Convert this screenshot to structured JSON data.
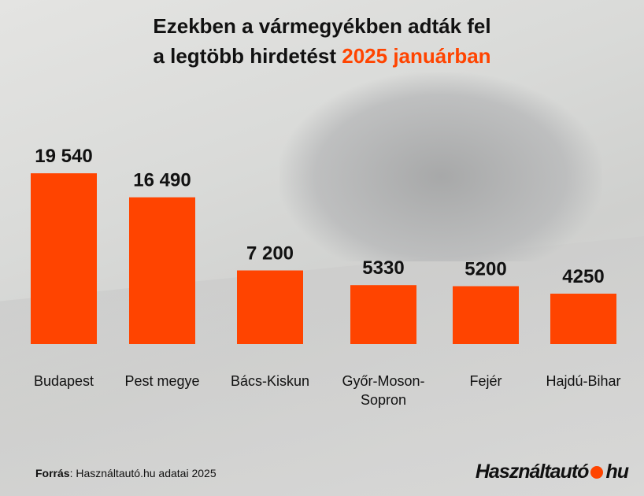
{
  "title": {
    "line1": "Ezekben a vármegyékben adták fel",
    "line2_prefix": "a legtöbb hirdetést ",
    "line2_accent": "2025 januárban"
  },
  "chart_data": {
    "type": "bar",
    "categories": [
      [
        "Budapest"
      ],
      [
        "Pest megye"
      ],
      [
        "Bács-Kiskun"
      ],
      [
        "Győr-Moson-",
        "Sopron"
      ],
      [
        "Fejér"
      ],
      [
        "Hajdú-Bihar"
      ]
    ],
    "values": [
      19540,
      16490,
      7200,
      5330,
      5200,
      4250
    ],
    "value_labels": [
      "19 540",
      "16 490",
      "7 200",
      "5330",
      "5200",
      "4250"
    ],
    "bar_color": "#ff4400",
    "grid": false
  },
  "footer": {
    "source_label": "Forrás",
    "source_text": ": Használtautó.hu adatai 2025"
  },
  "logo": {
    "text_left": "Használtautó",
    "text_right": "hu"
  }
}
